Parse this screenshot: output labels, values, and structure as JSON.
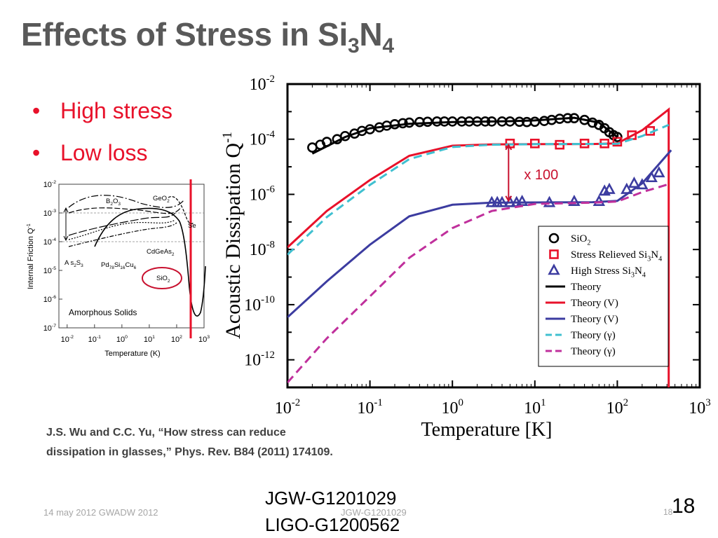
{
  "slide": {
    "title": {
      "base": "Effects of Stress in Si",
      "sub1": "3",
      "mid": "N",
      "sub2": "4"
    },
    "bullets": [
      "High stress",
      "Low loss"
    ],
    "citation_line1": "J.S. Wu and C.C. Yu, “How stress can reduce",
    "citation_line2": "dissipation in glasses,” Phys. Rev. B84 (2011) 174109.",
    "footer_date": "14 may 2012 GWADW 2012",
    "footer_doc": "JGW-G1201029",
    "footer_page_small": "18",
    "doc_id_1": "JGW-G1201029",
    "doc_id_2": "LIGO-G1200562",
    "page_number": "18",
    "colors": {
      "title": "#595959",
      "bullet": "#e8112a",
      "footer": "#a6a6a6"
    }
  },
  "chart_data": [
    {
      "type": "line",
      "xscale": "log",
      "yscale": "log",
      "xlim": [
        0.01,
        1000
      ],
      "ylim": [
        1e-13,
        0.01
      ],
      "xlabel": "Temperature [K]",
      "ylabel": {
        "base": "Acoustic Dissipation Q",
        "sup": "-1"
      },
      "xticks": [
        {
          "base": "10",
          "sup": "-2"
        },
        {
          "base": "10",
          "sup": "-1"
        },
        {
          "base": "10",
          "sup": "0"
        },
        {
          "base": "10",
          "sup": "1"
        },
        {
          "base": "10",
          "sup": "2"
        },
        {
          "base": "10",
          "sup": "3"
        }
      ],
      "yticks": [
        {
          "base": "10",
          "sup": "-2"
        },
        {
          "base": "10",
          "sup": "-4"
        },
        {
          "base": "10",
          "sup": "-6"
        },
        {
          "base": "10",
          "sup": "-8"
        },
        {
          "base": "10",
          "sup": "-10"
        },
        {
          "base": "10",
          "sup": "-12"
        }
      ],
      "annotation": "x 100",
      "legend_position": "bottom-right",
      "legend": [
        {
          "marker": "circle",
          "color": "#000000",
          "label": [
            {
              "t": "SiO"
            },
            {
              "t": "2",
              "s": "sub"
            }
          ]
        },
        {
          "marker": "square",
          "color": "#e8112a",
          "label": [
            {
              "t": "Stress Relieved Si"
            },
            {
              "t": "3",
              "s": "sub"
            },
            {
              "t": "N"
            },
            {
              "t": "4",
              "s": "sub"
            }
          ]
        },
        {
          "marker": "triangle",
          "color": "#3c3ca0",
          "label": [
            {
              "t": "High Stress Si"
            },
            {
              "t": "3",
              "s": "sub"
            },
            {
              "t": "N"
            },
            {
              "t": "4",
              "s": "sub"
            }
          ]
        },
        {
          "marker": "line",
          "color": "#000000",
          "dash": false,
          "label": [
            {
              "t": "Theory"
            }
          ]
        },
        {
          "marker": "line",
          "color": "#e8112a",
          "dash": false,
          "label": [
            {
              "t": "Theory (V)"
            }
          ]
        },
        {
          "marker": "line",
          "color": "#3c3ca0",
          "dash": false,
          "label": [
            {
              "t": "Theory (V)"
            }
          ]
        },
        {
          "marker": "line",
          "color": "#40c0d0",
          "dash": true,
          "label": [
            {
              "t": "Theory (γ)"
            }
          ]
        },
        {
          "marker": "line",
          "color": "#c0309c",
          "dash": true,
          "label": [
            {
              "t": "Theory (γ)"
            }
          ]
        }
      ],
      "series": [
        {
          "name": "SiO2",
          "kind": "points",
          "marker": "circle",
          "color": "#000000",
          "points": [
            [
              0.02,
              5e-05
            ],
            [
              0.025,
              6.3e-05
            ],
            [
              0.03,
              8e-05
            ],
            [
              0.04,
              0.0001
            ],
            [
              0.05,
              0.00013
            ],
            [
              0.065,
              0.00016
            ],
            [
              0.08,
              0.0002
            ],
            [
              0.1,
              0.00023
            ],
            [
              0.13,
              0.00027
            ],
            [
              0.16,
              0.00031
            ],
            [
              0.2,
              0.00035
            ],
            [
              0.25,
              0.00038
            ],
            [
              0.3,
              0.0004
            ],
            [
              0.4,
              0.00042
            ],
            [
              0.5,
              0.00043
            ],
            [
              0.65,
              0.00044
            ],
            [
              0.8,
              0.00044
            ],
            [
              1,
              0.00044
            ],
            [
              1.3,
              0.00044
            ],
            [
              1.6,
              0.00044
            ],
            [
              2,
              0.00044
            ],
            [
              2.5,
              0.00044
            ],
            [
              3,
              0.00044
            ],
            [
              4,
              0.00044
            ],
            [
              5,
              0.00044
            ],
            [
              6.5,
              0.00043
            ],
            [
              8,
              0.00042
            ],
            [
              10,
              0.00043
            ],
            [
              13,
              0.00046
            ],
            [
              16,
              0.0005
            ],
            [
              20,
              0.00055
            ],
            [
              25,
              0.00058
            ],
            [
              30,
              0.00058
            ],
            [
              40,
              0.0005
            ],
            [
              50,
              0.0004
            ],
            [
              60,
              0.00033
            ],
            [
              70,
              0.00025
            ],
            [
              80,
              0.00018
            ],
            [
              90,
              0.00014
            ],
            [
              100,
              0.00012
            ]
          ]
        },
        {
          "name": "Stress Relieved Si3N4",
          "kind": "points",
          "marker": "square",
          "color": "#e8112a",
          "points": [
            [
              5,
              7e-05
            ],
            [
              10,
              7e-05
            ],
            [
              20,
              6.3e-05
            ],
            [
              40,
              7e-05
            ],
            [
              70,
              7e-05
            ],
            [
              100,
              8.1e-05
            ],
            [
              150,
              0.00014
            ],
            [
              250,
              0.0002
            ]
          ]
        },
        {
          "name": "High Stress Si3N4",
          "kind": "points",
          "marker": "triangle",
          "color": "#3c3ca0",
          "points": [
            [
              3,
              5e-07
            ],
            [
              3.5,
              5e-07
            ],
            [
              4,
              5e-07
            ],
            [
              5,
              5e-07
            ],
            [
              6,
              5e-07
            ],
            [
              7,
              5.5e-07
            ],
            [
              15,
              5e-07
            ],
            [
              30,
              5.5e-07
            ],
            [
              60,
              5.5e-07
            ],
            [
              70,
              1.3e-06
            ],
            [
              80,
              1.5e-06
            ],
            [
              130,
              1.5e-06
            ],
            [
              160,
              2.5e-06
            ],
            [
              200,
              2.2e-06
            ],
            [
              260,
              4e-06
            ],
            [
              320,
              6e-06
            ]
          ]
        },
        {
          "name": "Theory",
          "kind": "line",
          "color": "#000000",
          "dash": false,
          "points": [
            [
              0.02,
              3e-05
            ],
            [
              0.05,
              0.00012
            ],
            [
              0.1,
              0.00025
            ],
            [
              0.3,
              0.00036
            ],
            [
              1,
              0.00042
            ],
            [
              5,
              0.00045
            ],
            [
              10,
              0.00048
            ],
            [
              30,
              0.0006
            ],
            [
              60,
              0.0004
            ],
            [
              80,
              0.0002
            ],
            [
              100,
              0.00012
            ]
          ]
        },
        {
          "name": "Theory (V)",
          "kind": "line",
          "color": "#e8112a",
          "dash": false,
          "points": [
            [
              0.01,
              1.2e-08
            ],
            [
              0.03,
              2.5e-07
            ],
            [
              0.1,
              3.3e-06
            ],
            [
              0.3,
              2.5e-05
            ],
            [
              1,
              5.8e-05
            ],
            [
              3,
              6.5e-05
            ],
            [
              10,
              6.6e-05
            ],
            [
              50,
              6.7e-05
            ],
            [
              100,
              7.1e-05
            ],
            [
              200,
              0.00021
            ],
            [
              420,
              0.0012
            ],
            [
              420,
              1e-13
            ]
          ]
        },
        {
          "name": "Theory (V)",
          "kind": "line",
          "color": "#3c3ca0",
          "dash": false,
          "points": [
            [
              0.01,
              3.5e-11
            ],
            [
              0.03,
              7e-10
            ],
            [
              0.1,
              1.5e-08
            ],
            [
              0.3,
              1.6e-07
            ],
            [
              1,
              4.2e-07
            ],
            [
              3,
              5e-07
            ],
            [
              10,
              5.1e-07
            ],
            [
              50,
              5.2e-07
            ],
            [
              100,
              5.8e-07
            ],
            [
              200,
              2.5e-06
            ],
            [
              450,
              4e-05
            ]
          ]
        },
        {
          "name": "Theory (γ)",
          "kind": "line",
          "color": "#40c0d0",
          "dash": true,
          "points": [
            [
              0.01,
              6.5e-09
            ],
            [
              0.03,
              1.5e-07
            ],
            [
              0.1,
              2.2e-06
            ],
            [
              0.3,
              1.9e-05
            ],
            [
              1,
              5.2e-05
            ],
            [
              3,
              6.3e-05
            ],
            [
              10,
              6.6e-05
            ],
            [
              100,
              6.8e-05
            ],
            [
              200,
              0.00013
            ],
            [
              420,
              0.00033
            ]
          ]
        },
        {
          "name": "Theory (γ)",
          "kind": "line",
          "color": "#c0309c",
          "dash": true,
          "points": [
            [
              0.01,
              1.5e-13
            ],
            [
              0.03,
              6e-12
            ],
            [
              0.1,
              2e-10
            ],
            [
              0.3,
              5e-09
            ],
            [
              1,
              6e-08
            ],
            [
              3,
              2.5e-07
            ],
            [
              10,
              4.5e-07
            ],
            [
              50,
              5e-07
            ],
            [
              100,
              5.5e-07
            ],
            [
              200,
              1.2e-06
            ],
            [
              450,
              2.5e-06
            ]
          ]
        }
      ]
    },
    {
      "type": "line",
      "xscale": "log",
      "yscale": "log",
      "xlim": [
        0.005,
        1000
      ],
      "ylim": [
        1e-07,
        0.01
      ],
      "xlabel": "Temperature (K)",
      "ylabel": {
        "base": "Internal Friction Q",
        "sup": "-1"
      },
      "xticks": [
        {
          "base": "10",
          "sup": "-2"
        },
        {
          "base": "10",
          "sup": "-1"
        },
        {
          "base": "10",
          "sup": "0"
        },
        {
          "base": "10",
          "sup": "1"
        },
        {
          "base": "10",
          "sup": "2"
        },
        {
          "base": "10",
          "sup": "3"
        }
      ],
      "yticks": [
        {
          "base": "10",
          "sup": "-2"
        },
        {
          "base": "10",
          "sup": "-3"
        },
        {
          "base": "10",
          "sup": "-4"
        },
        {
          "base": "10",
          "sup": "-5"
        },
        {
          "base": "10",
          "sup": "-6"
        },
        {
          "base": "10",
          "sup": "-7"
        }
      ],
      "labels": {
        "b2o3": [
          {
            "t": "B"
          },
          {
            "t": "2",
            "s": "sub"
          },
          {
            "t": "O"
          },
          {
            "t": "3",
            "s": "sub"
          }
        ],
        "geo2": [
          {
            "t": "GeO"
          },
          {
            "t": "2",
            "s": "sub"
          }
        ],
        "se": [
          {
            "t": "Se"
          }
        ],
        "as2s3": [
          {
            "t": "A s"
          },
          {
            "t": "2",
            "s": "sub"
          },
          {
            "t": "S"
          },
          {
            "t": "3",
            "s": "sub"
          }
        ],
        "pd": [
          {
            "t": "Pd"
          },
          {
            "t": "78",
            "s": "sub"
          },
          {
            "t": "Si"
          },
          {
            "t": "16",
            "s": "sub"
          },
          {
            "t": "Cu"
          },
          {
            "t": "6",
            "s": "sub"
          }
        ],
        "cdgeas": [
          {
            "t": "CdGeAs"
          },
          {
            "t": "2",
            "s": "sub"
          }
        ],
        "sio2": [
          {
            "t": "SiO"
          },
          {
            "t": "2",
            "s": "sub"
          }
        ]
      },
      "annotation": "Amorphous Solids"
    }
  ]
}
